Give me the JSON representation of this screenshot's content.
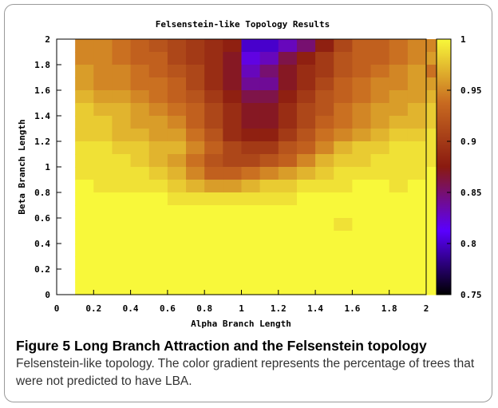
{
  "figure": {
    "caption_label": "Figure 5",
    "caption_title": "Long Branch Attraction and the Felsenstein topology",
    "caption_body": "Felsenstein-like topology. The color gradient represents the percentage of trees that were not predicted to have LBA."
  },
  "colors": {
    "palette_stops": [
      "#000000",
      "#5a00ff",
      "#8a1a10",
      "#c86a20",
      "#f8f83a"
    ],
    "frame": "#000000",
    "background": "#ffffff"
  },
  "chart_data": {
    "type": "heatmap",
    "title": "Felsenstein-like Topology Results",
    "xlabel": "Alpha Branch Length",
    "ylabel": "Beta Branch Length",
    "xlim": [
      0,
      2
    ],
    "ylim": [
      0,
      2
    ],
    "x_ticks": [
      "0",
      "0.2",
      "0.4",
      "0.6",
      "0.8",
      "1",
      "1.2",
      "1.4",
      "1.6",
      "1.8",
      "2"
    ],
    "y_ticks": [
      "0",
      "0.2",
      "0.4",
      "0.6",
      "0.8",
      "1",
      "1.2",
      "1.4",
      "1.6",
      "1.8",
      "2"
    ],
    "colorbar": {
      "min": 0.75,
      "max": 1,
      "ticks": [
        "0.75",
        "0.8",
        "0.85",
        "0.9",
        "0.95",
        "1"
      ]
    },
    "grid": {
      "x_start": 0.1,
      "x_step": 0.1,
      "y_start": 0.1,
      "y_step": 0.1,
      "note": "rows listed from beta 2.0 (top) down to beta 0.1 (bottom); columns alpha 0.1 to 2.0",
      "values": [
        [
          0.95,
          0.95,
          0.94,
          0.93,
          0.92,
          0.91,
          0.9,
          0.89,
          0.88,
          0.8,
          0.8,
          0.83,
          0.85,
          0.88,
          0.91,
          0.93,
          0.93,
          0.94,
          0.95,
          0.95
        ],
        [
          0.95,
          0.95,
          0.94,
          0.93,
          0.93,
          0.91,
          0.9,
          0.89,
          0.87,
          0.82,
          0.83,
          0.86,
          0.88,
          0.9,
          0.92,
          0.93,
          0.93,
          0.94,
          0.95,
          0.96
        ],
        [
          0.96,
          0.95,
          0.95,
          0.94,
          0.93,
          0.92,
          0.91,
          0.89,
          0.87,
          0.83,
          0.85,
          0.87,
          0.89,
          0.9,
          0.92,
          0.93,
          0.94,
          0.95,
          0.96,
          0.94
        ],
        [
          0.96,
          0.95,
          0.95,
          0.94,
          0.94,
          0.93,
          0.91,
          0.89,
          0.87,
          0.84,
          0.84,
          0.87,
          0.89,
          0.91,
          0.93,
          0.94,
          0.95,
          0.95,
          0.96,
          0.96
        ],
        [
          0.97,
          0.96,
          0.96,
          0.95,
          0.94,
          0.93,
          0.92,
          0.9,
          0.88,
          0.86,
          0.86,
          0.88,
          0.9,
          0.92,
          0.93,
          0.94,
          0.95,
          0.96,
          0.96,
          0.97
        ],
        [
          0.98,
          0.97,
          0.97,
          0.96,
          0.95,
          0.94,
          0.93,
          0.91,
          0.89,
          0.87,
          0.87,
          0.89,
          0.91,
          0.92,
          0.94,
          0.95,
          0.96,
          0.96,
          0.97,
          0.98
        ],
        [
          0.98,
          0.98,
          0.97,
          0.96,
          0.96,
          0.95,
          0.93,
          0.91,
          0.89,
          0.87,
          0.87,
          0.89,
          0.91,
          0.93,
          0.94,
          0.95,
          0.96,
          0.97,
          0.97,
          0.98
        ],
        [
          0.98,
          0.98,
          0.97,
          0.97,
          0.96,
          0.96,
          0.94,
          0.92,
          0.89,
          0.88,
          0.88,
          0.9,
          0.92,
          0.94,
          0.95,
          0.96,
          0.97,
          0.98,
          0.98,
          0.99
        ],
        [
          0.99,
          0.99,
          0.98,
          0.98,
          0.97,
          0.97,
          0.95,
          0.93,
          0.91,
          0.9,
          0.9,
          0.92,
          0.93,
          0.95,
          0.97,
          0.98,
          0.98,
          0.99,
          0.99,
          0.99
        ],
        [
          0.99,
          0.99,
          0.99,
          0.98,
          0.97,
          0.96,
          0.94,
          0.92,
          0.91,
          0.91,
          0.92,
          0.93,
          0.95,
          0.97,
          0.98,
          0.98,
          0.99,
          0.99,
          0.99,
          0.99
        ],
        [
          0.99,
          0.99,
          0.99,
          0.99,
          0.98,
          0.97,
          0.95,
          0.93,
          0.93,
          0.94,
          0.95,
          0.96,
          0.97,
          0.98,
          0.99,
          0.99,
          0.99,
          0.99,
          0.99,
          1.0
        ],
        [
          1.0,
          0.99,
          0.99,
          0.99,
          0.99,
          0.98,
          0.97,
          0.96,
          0.96,
          0.97,
          0.98,
          0.98,
          0.99,
          0.99,
          0.99,
          1.0,
          1.0,
          0.99,
          1.0,
          1.0
        ],
        [
          1.0,
          1.0,
          1.0,
          1.0,
          1.0,
          0.99,
          0.99,
          0.99,
          0.99,
          0.99,
          0.99,
          0.99,
          1.0,
          1.0,
          1.0,
          1.0,
          1.0,
          1.0,
          1.0,
          1.0
        ],
        [
          1.0,
          1.0,
          1.0,
          1.0,
          1.0,
          1.0,
          1.0,
          1.0,
          1.0,
          1.0,
          1.0,
          1.0,
          1.0,
          1.0,
          1.0,
          1.0,
          1.0,
          1.0,
          1.0,
          1.0
        ],
        [
          1.0,
          1.0,
          1.0,
          1.0,
          1.0,
          1.0,
          1.0,
          1.0,
          1.0,
          1.0,
          1.0,
          1.0,
          1.0,
          1.0,
          0.99,
          1.0,
          1.0,
          1.0,
          1.0,
          1.0
        ],
        [
          1.0,
          1.0,
          1.0,
          1.0,
          1.0,
          1.0,
          1.0,
          1.0,
          1.0,
          1.0,
          1.0,
          1.0,
          1.0,
          1.0,
          1.0,
          1.0,
          1.0,
          1.0,
          1.0,
          1.0
        ],
        [
          1.0,
          1.0,
          1.0,
          1.0,
          1.0,
          1.0,
          1.0,
          1.0,
          1.0,
          1.0,
          1.0,
          1.0,
          1.0,
          1.0,
          1.0,
          1.0,
          1.0,
          1.0,
          1.0,
          1.0
        ],
        [
          1.0,
          1.0,
          1.0,
          1.0,
          1.0,
          1.0,
          1.0,
          1.0,
          1.0,
          1.0,
          1.0,
          1.0,
          1.0,
          1.0,
          1.0,
          1.0,
          1.0,
          1.0,
          1.0,
          1.0
        ],
        [
          1.0,
          1.0,
          1.0,
          1.0,
          1.0,
          1.0,
          1.0,
          1.0,
          1.0,
          1.0,
          1.0,
          1.0,
          1.0,
          1.0,
          1.0,
          1.0,
          1.0,
          1.0,
          1.0,
          1.0
        ],
        [
          1.0,
          1.0,
          1.0,
          1.0,
          1.0,
          1.0,
          1.0,
          1.0,
          1.0,
          1.0,
          1.0,
          1.0,
          1.0,
          1.0,
          1.0,
          1.0,
          1.0,
          1.0,
          1.0,
          1.0
        ]
      ]
    }
  }
}
